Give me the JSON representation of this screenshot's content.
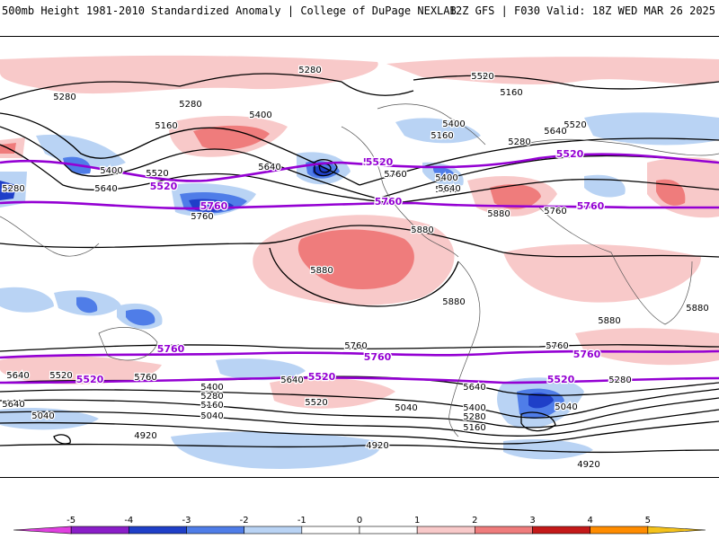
{
  "header": {
    "left": "500mb Height 1981-2010 Standardized Anomaly | College of DuPage NEXLAB",
    "right": "12Z GFS | F030 Valid: 18Z WED MAR 26 2025"
  },
  "colors": {
    "neg5": "#e040e0",
    "neg4": "#8a1ec8",
    "neg3": "#1f3fc8",
    "neg2": "#4f7de8",
    "neg1": "#b9d3f4",
    "pos1": "#f8c9c9",
    "pos2": "#ef7c7c",
    "pos3": "#c41919",
    "pos4": "#ff8c00",
    "pos5": "#f4c21b",
    "contour": "#000000",
    "highlight": "#9400d3"
  },
  "colorbar": {
    "ticks": [
      "-5",
      "-4",
      "-3",
      "-2",
      "-1",
      "0",
      "1",
      "2",
      "3",
      "4",
      "5"
    ]
  },
  "contour_labels": {
    "black": [
      "5280",
      "5280",
      "5280",
      "5160",
      "5160",
      "5160",
      "5400",
      "5400",
      "5640",
      "5640",
      "5520",
      "5640",
      "5760",
      "5760",
      "5880",
      "5880",
      "5880",
      "5880",
      "5880",
      "5520",
      "5160",
      "5280",
      "5400",
      "5640",
      "5280",
      "5520",
      "5640",
      "5760",
      "5760",
      "5640",
      "5520",
      "5640",
      "5400",
      "5280",
      "5160",
      "5040",
      "5520",
      "5040",
      "5640",
      "5400",
      "5280",
      "5160",
      "5040",
      "5280",
      "5040",
      "4920",
      "4920",
      "4920",
      "5760",
      "5760",
      "5880",
      "5400",
      "5640"
    ],
    "purple": [
      "5520",
      "5520",
      "5520",
      "5760",
      "5760",
      "5760",
      "5760",
      "5760",
      "5760",
      "5520",
      "5520",
      "5520",
      "5520"
    ]
  }
}
